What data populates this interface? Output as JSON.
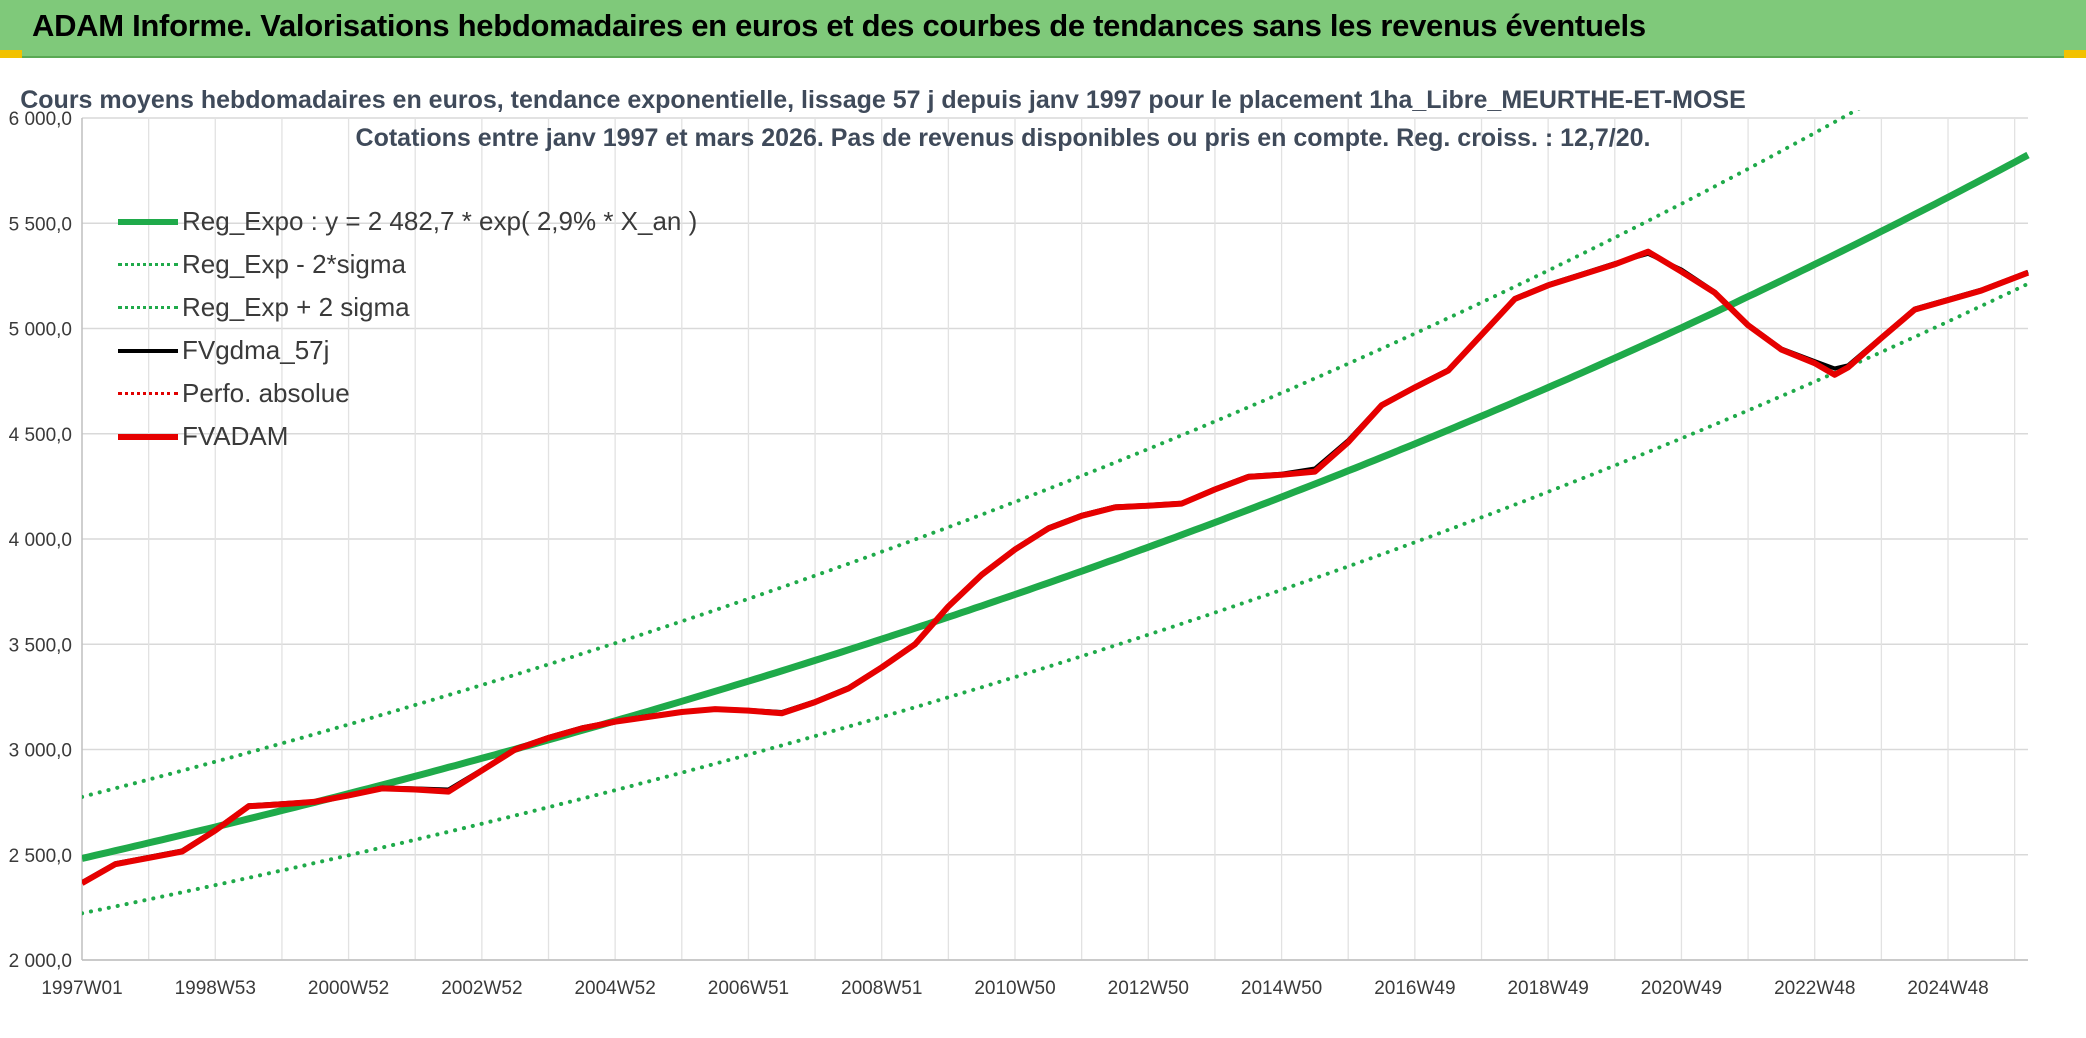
{
  "header": {
    "title": "ADAM Informe. Valorisations hebdomadaires en euros et des courbes de tendances sans les revenus éventuels"
  },
  "chart_data": {
    "type": "line",
    "title": "Cours moyens hebdomadaires en euros, tendance exponentielle, lissage 57 j depuis janv 1997 pour le placement 1ha_Libre_MEURTHE-ET-MOSE",
    "subtitle": "Cotations entre janv 1997 et mars 2026. Pas de revenus disponibles ou pris en compte. Reg. croiss. : 12,7/20.",
    "xlabel": "",
    "ylabel": "",
    "ylim": [
      2000,
      6000
    ],
    "yticks": [
      "2 000,0",
      "2 500,0",
      "3 000,0",
      "3 500,0",
      "4 000,0",
      "4 500,0",
      "5 000,0",
      "5 500,0",
      "6 000,0"
    ],
    "xlim": [
      0,
      29.2
    ],
    "xticks": [
      {
        "x": 0,
        "label": "1997W01"
      },
      {
        "x": 2,
        "label": "1998W53"
      },
      {
        "x": 4,
        "label": "2000W52"
      },
      {
        "x": 6,
        "label": "2002W52"
      },
      {
        "x": 8,
        "label": "2004W52"
      },
      {
        "x": 10,
        "label": "2006W51"
      },
      {
        "x": 12,
        "label": "2008W51"
      },
      {
        "x": 14,
        "label": "2010W50"
      },
      {
        "x": 16,
        "label": "2012W50"
      },
      {
        "x": 18,
        "label": "2014W50"
      },
      {
        "x": 20,
        "label": "2016W49"
      },
      {
        "x": 22,
        "label": "2018W49"
      },
      {
        "x": 24,
        "label": "2020W49"
      },
      {
        "x": 26,
        "label": "2022W48"
      },
      {
        "x": 28,
        "label": "2024W48"
      }
    ],
    "grid": true,
    "legend_position": "top-left",
    "series": [
      {
        "name": "Reg_Expo : y = 2 482,7 * exp( 2,9% *  X_an )",
        "kind": "expo",
        "a": 2482.7,
        "r": 0.0292,
        "color": "#1faa4a",
        "style": "solid",
        "width": 7
      },
      {
        "name": "Reg_Exp - 2*sigma",
        "kind": "expo",
        "a": 2222,
        "r": 0.0292,
        "color": "#1faa4a",
        "style": "dotted",
        "width": 4
      },
      {
        "name": "Reg_Exp + 2 sigma",
        "kind": "expo",
        "a": 2775,
        "r": 0.0292,
        "color": "#1faa4a",
        "style": "dotted",
        "width": 4
      },
      {
        "name": "FVgdma_57j",
        "kind": "points",
        "color": "#000000",
        "style": "solid",
        "width": 4,
        "x": [
          0,
          0.5,
          1.0,
          1.5,
          2.0,
          2.5,
          3.0,
          3.5,
          4.0,
          4.5,
          5.0,
          5.5,
          6.0,
          6.5,
          7.0,
          7.5,
          8.0,
          8.5,
          9.0,
          9.5,
          10.0,
          10.5,
          11.0,
          11.5,
          12.0,
          12.5,
          13.0,
          13.5,
          14.0,
          14.5,
          15.0,
          15.5,
          16.0,
          16.5,
          17.0,
          17.5,
          18.0,
          18.5,
          19.0,
          19.5,
          20.0,
          20.5,
          21.0,
          21.5,
          22.0,
          22.5,
          23.0,
          23.5,
          24.0,
          24.5,
          25.0,
          25.5,
          26.0,
          26.3,
          26.5,
          27.0,
          27.5,
          28.0,
          28.5,
          29.2
        ],
        "y": [
          2370,
          2460,
          2490,
          2520,
          2620,
          2735,
          2745,
          2755,
          2785,
          2820,
          2815,
          2810,
          2905,
          3005,
          3060,
          3105,
          3135,
          3160,
          3180,
          3195,
          3188,
          3178,
          3230,
          3295,
          3395,
          3505,
          3685,
          3835,
          3955,
          4055,
          4115,
          4155,
          4162,
          4172,
          4240,
          4300,
          4310,
          4335,
          4470,
          4640,
          4725,
          4805,
          4975,
          5145,
          5210,
          5260,
          5310,
          5355,
          5280,
          5175,
          5020,
          4905,
          4845,
          4810,
          4825,
          4960,
          5095,
          5140,
          5185,
          5270
        ]
      },
      {
        "name": "Perfo. absolue",
        "kind": "none",
        "color": "#e00000",
        "style": "dotted",
        "width": 3
      },
      {
        "name": "FVADAM",
        "kind": "points",
        "color": "#e60000",
        "style": "solid",
        "width": 6,
        "x": [
          0,
          0.5,
          1.0,
          1.5,
          2.0,
          2.5,
          3.0,
          3.5,
          4.0,
          4.5,
          5.0,
          5.5,
          6.0,
          6.5,
          7.0,
          7.5,
          8.0,
          8.5,
          9.0,
          9.5,
          10.0,
          10.5,
          11.0,
          11.5,
          12.0,
          12.5,
          13.0,
          13.5,
          14.0,
          14.5,
          15.0,
          15.5,
          16.0,
          16.5,
          17.0,
          17.5,
          18.0,
          18.5,
          19.0,
          19.5,
          20.0,
          20.5,
          21.0,
          21.5,
          22.0,
          22.5,
          23.0,
          23.5,
          24.0,
          24.5,
          25.0,
          25.5,
          26.0,
          26.3,
          26.5,
          27.0,
          27.5,
          28.0,
          28.5,
          29.2
        ],
        "y": [
          2365,
          2455,
          2485,
          2515,
          2615,
          2730,
          2740,
          2752,
          2782,
          2815,
          2810,
          2800,
          2900,
          3000,
          3055,
          3100,
          3132,
          3155,
          3178,
          3192,
          3185,
          3172,
          3225,
          3290,
          3390,
          3500,
          3680,
          3830,
          3950,
          4050,
          4110,
          4150,
          4158,
          4168,
          4235,
          4295,
          4305,
          4320,
          4460,
          4635,
          4720,
          4800,
          4970,
          5140,
          5205,
          5255,
          5305,
          5365,
          5270,
          5170,
          5015,
          4900,
          4835,
          4780,
          4815,
          4955,
          5090,
          5135,
          5180,
          5265
        ]
      }
    ]
  }
}
